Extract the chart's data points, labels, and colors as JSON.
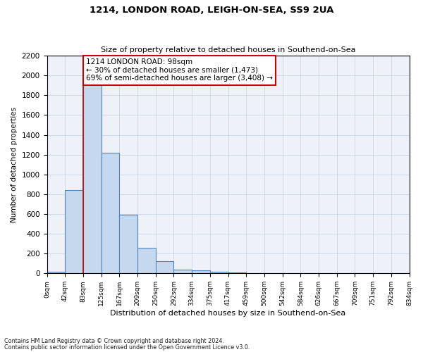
{
  "title1": "1214, LONDON ROAD, LEIGH-ON-SEA, SS9 2UA",
  "title2": "Size of property relative to detached houses in Southend-on-Sea",
  "xlabel": "Distribution of detached houses by size in Southend-on-Sea",
  "ylabel": "Number of detached properties",
  "bar_values": [
    20,
    840,
    1950,
    1220,
    590,
    260,
    120,
    35,
    30,
    20,
    10,
    0,
    0,
    0,
    0,
    0,
    0,
    0,
    0,
    0
  ],
  "bar_labels": [
    "0sqm",
    "42sqm",
    "83sqm",
    "125sqm",
    "167sqm",
    "209sqm",
    "250sqm",
    "292sqm",
    "334sqm",
    "375sqm",
    "417sqm",
    "459sqm",
    "500sqm",
    "542sqm",
    "584sqm",
    "626sqm",
    "667sqm",
    "709sqm",
    "751sqm",
    "792sqm",
    "834sqm"
  ],
  "bar_color": "#c5d8ed",
  "bar_edge_color": "#4f86c0",
  "bar_edge_width": 0.8,
  "vline_x": 2.0,
  "vline_color": "#cc0000",
  "annotation_text": "1214 LONDON ROAD: 98sqm\n← 30% of detached houses are smaller (1,473)\n69% of semi-detached houses are larger (3,408) →",
  "annotation_box_color": "#ffffff",
  "annotation_box_edge_color": "#cc0000",
  "ylim": [
    0,
    2200
  ],
  "ytick_step": 200,
  "footnote1": "Contains HM Land Registry data © Crown copyright and database right 2024.",
  "footnote2": "Contains public sector information licensed under the Open Government Licence v3.0.",
  "bg_color": "#eef2f8"
}
